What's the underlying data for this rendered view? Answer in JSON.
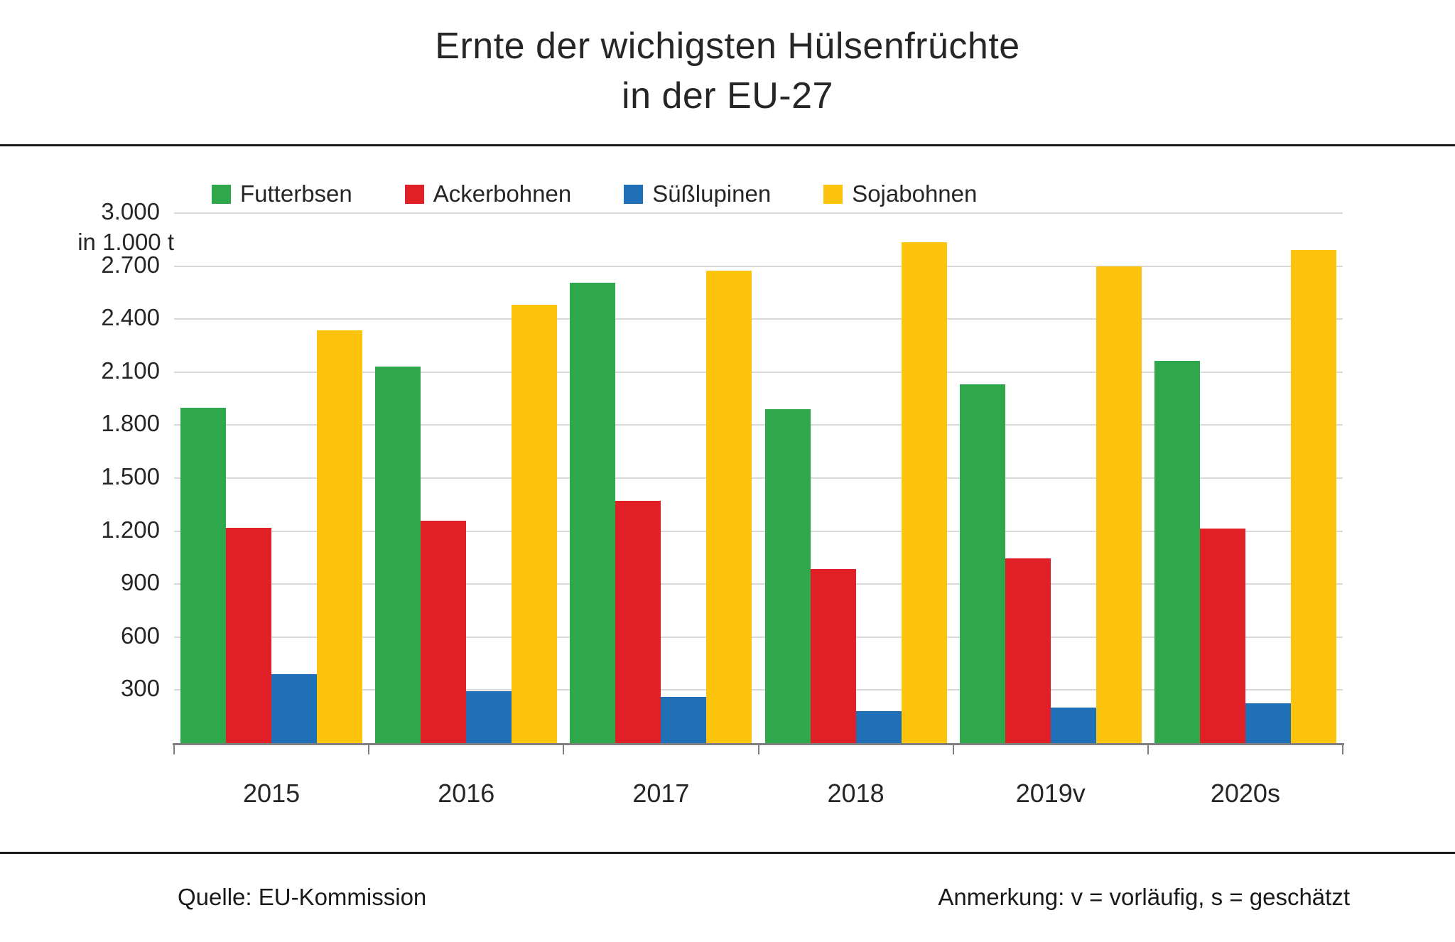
{
  "title": {
    "line1": "Ernte der wichigsten Hülsenfrüchte",
    "line2": "in der EU-27"
  },
  "y_axis": {
    "unit_label": "in 1.000  t",
    "tick_labels": [
      "300",
      "600",
      "900",
      "1.200",
      "1.500",
      "1.800",
      "2.100",
      "2.400",
      "2.700",
      "3.000"
    ]
  },
  "footer": {
    "source": "Quelle: EU-Kommission",
    "note": "Anmerkung: v = vorläufig, s = geschätzt"
  },
  "colors": {
    "grid": "#d9d9d9",
    "axis": "#808080",
    "futterbsen": "#2fa84c",
    "ackerbohnen": "#e01f26",
    "suesslupinen": "#1f70b7",
    "sojabohnen": "#fdc40d"
  },
  "chart_data": {
    "type": "bar",
    "categories": [
      "2015",
      "2016",
      "2017",
      "2018",
      "2019v",
      "2020s"
    ],
    "series": [
      {
        "name": "Futterbsen",
        "color": "#2fa84c",
        "values": [
          1900,
          2130,
          2605,
          1890,
          2030,
          2165
        ]
      },
      {
        "name": "Ackerbohnen",
        "color": "#e01f26",
        "values": [
          1220,
          1260,
          1370,
          985,
          1045,
          1215
        ]
      },
      {
        "name": "Süßlupinen",
        "color": "#1f70b7",
        "values": [
          390,
          295,
          260,
          180,
          200,
          225
        ]
      },
      {
        "name": "Sojabohnen",
        "color": "#fdc40d",
        "values": [
          2335,
          2480,
          2675,
          2835,
          2700,
          2790
        ]
      }
    ],
    "title": "Ernte der wichigsten Hülsenfrüchte in der EU-27",
    "xlabel": "",
    "ylabel": "in 1.000 t",
    "ylim": [
      0,
      3000
    ],
    "ytick_step": 300,
    "grid": true,
    "legend_position": "top"
  }
}
